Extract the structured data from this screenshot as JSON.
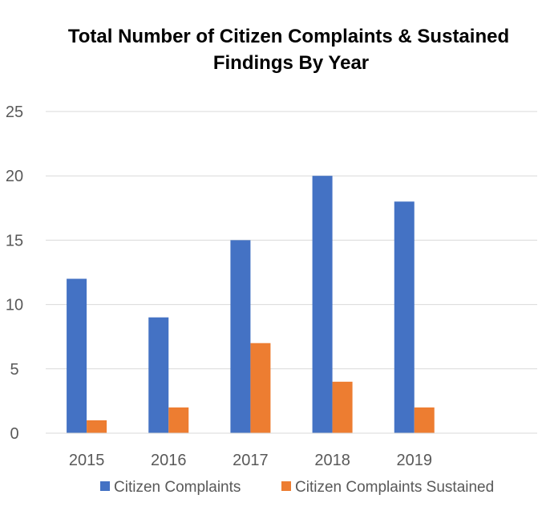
{
  "chart_data": {
    "type": "bar",
    "title_lines": [
      "Total Number of Citizen Complaints & Sustained",
      "Findings By Year"
    ],
    "categories": [
      "2015",
      "2016",
      "2017",
      "2018",
      "2019",
      ""
    ],
    "series": [
      {
        "name": "Citizen Complaints",
        "color": "#4472c4",
        "values": [
          12,
          9,
          15,
          20,
          18,
          null
        ]
      },
      {
        "name": "Citizen Complaints Sustained",
        "color": "#ed7d31",
        "values": [
          1,
          2,
          7,
          4,
          2,
          null
        ]
      }
    ],
    "xlabel": "",
    "ylabel": "",
    "ylim": [
      0,
      25
    ],
    "yticks": [
      "0",
      "5",
      "10",
      "15",
      "20",
      "25"
    ],
    "grid": true,
    "legend_position": "bottom"
  }
}
